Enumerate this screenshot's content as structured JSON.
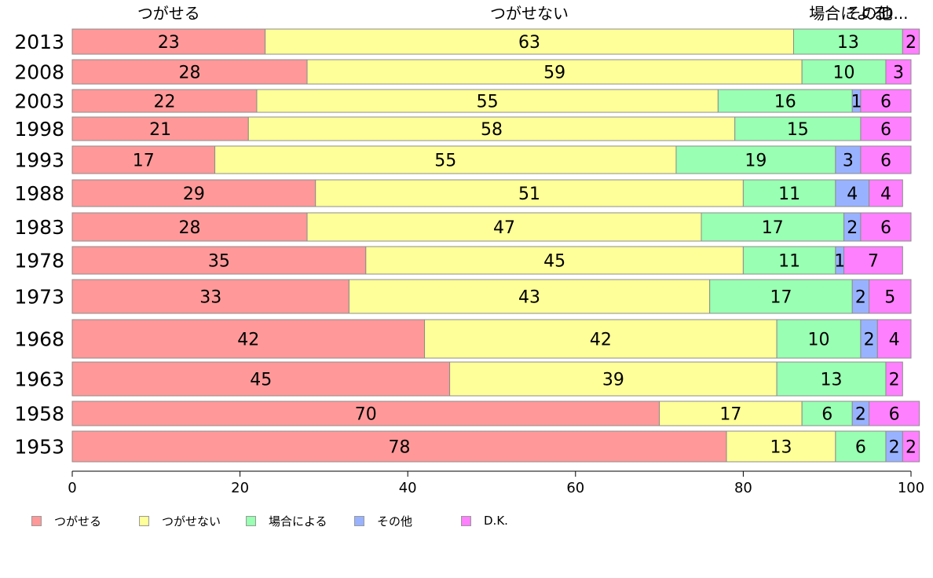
{
  "chart_data": {
    "type": "bar",
    "orientation": "horizontal",
    "stacked": true,
    "categories": [
      "2013",
      "2008",
      "2003",
      "1998",
      "1993",
      "1988",
      "1983",
      "1978",
      "1973",
      "1968",
      "1963",
      "1958",
      "1953"
    ],
    "series": [
      {
        "name": "つがせる",
        "color": "#ff9999",
        "values": [
          23,
          28,
          22,
          21,
          17,
          29,
          28,
          35,
          33,
          42,
          45,
          70,
          78
        ]
      },
      {
        "name": "つがせない",
        "color": "#ffff99",
        "values": [
          63,
          59,
          55,
          58,
          55,
          51,
          47,
          45,
          43,
          42,
          39,
          17,
          13
        ]
      },
      {
        "name": "場合による",
        "color": "#99ffb2",
        "values": [
          13,
          10,
          16,
          15,
          19,
          11,
          17,
          11,
          17,
          10,
          13,
          6,
          6
        ]
      },
      {
        "name": "その他",
        "color": "#99b2ff",
        "values": [
          0,
          0,
          1,
          0,
          3,
          4,
          2,
          1,
          2,
          2,
          0,
          2,
          2
        ]
      },
      {
        "name": "D.K.",
        "color": "#ff80ff",
        "values": [
          2,
          3,
          6,
          6,
          6,
          4,
          6,
          7,
          5,
          4,
          2,
          6,
          2
        ]
      }
    ],
    "top_labels": [
      "つがせる",
      "つがせない",
      "場合による",
      "その他",
      "D..."
    ],
    "xlim": [
      0,
      100
    ],
    "xticks": [
      0,
      20,
      40,
      60,
      80,
      100
    ],
    "grid": false,
    "legend_position": "bottom-left"
  }
}
